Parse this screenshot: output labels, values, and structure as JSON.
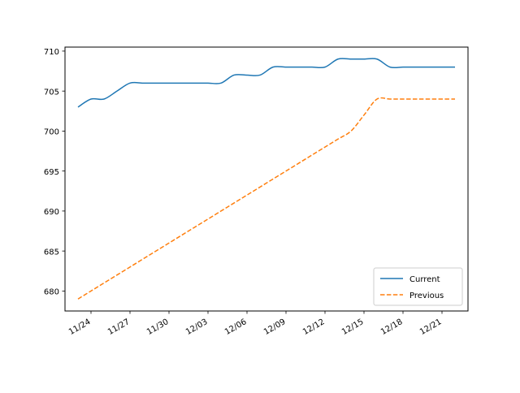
{
  "chart_data": {
    "type": "line",
    "title": "",
    "xlabel": "",
    "ylabel": "",
    "x_tick_labels": [
      "11/24",
      "11/27",
      "11/30",
      "12/03",
      "12/06",
      "12/09",
      "12/12",
      "12/15",
      "12/18",
      "12/21"
    ],
    "x_tick_dates": [
      "11/24",
      "11/27",
      "11/30",
      "12/03",
      "12/06",
      "12/09",
      "12/12",
      "12/15",
      "12/18",
      "12/21"
    ],
    "x_range": [
      "11/22",
      "12/23"
    ],
    "y_tick_labels": [
      "680",
      "685",
      "690",
      "695",
      "700",
      "705",
      "710"
    ],
    "y_ticks": [
      680,
      685,
      690,
      695,
      700,
      705,
      710
    ],
    "ylim": [
      677.5,
      710.5
    ],
    "grid": false,
    "legend_position": "lower-right",
    "series": [
      {
        "name": "Current",
        "color": "#1f77b4",
        "style": "solid",
        "points": [
          [
            "11/23",
            703.0
          ],
          [
            "11/24",
            704.0
          ],
          [
            "11/25",
            704.0
          ],
          [
            "11/26",
            705.0
          ],
          [
            "11/27",
            706.0
          ],
          [
            "11/28",
            706.0
          ],
          [
            "11/29",
            706.0
          ],
          [
            "11/30",
            706.0
          ],
          [
            "12/01",
            706.0
          ],
          [
            "12/02",
            706.0
          ],
          [
            "12/03",
            706.0
          ],
          [
            "12/04",
            706.0
          ],
          [
            "12/05",
            707.0
          ],
          [
            "12/06",
            707.0
          ],
          [
            "12/07",
            707.0
          ],
          [
            "12/08",
            708.0
          ],
          [
            "12/09",
            708.0
          ],
          [
            "12/10",
            708.0
          ],
          [
            "12/11",
            708.0
          ],
          [
            "12/12",
            708.0
          ],
          [
            "12/13",
            709.0
          ],
          [
            "12/14",
            709.0
          ],
          [
            "12/15",
            709.0
          ],
          [
            "12/16",
            709.0
          ],
          [
            "12/17",
            708.0
          ],
          [
            "12/18",
            708.0
          ],
          [
            "12/19",
            708.0
          ],
          [
            "12/20",
            708.0
          ],
          [
            "12/21",
            708.0
          ],
          [
            "12/22",
            708.0
          ]
        ]
      },
      {
        "name": "Previous",
        "color": "#ff7f0e",
        "style": "dashed",
        "points": [
          [
            "11/23",
            679.0
          ],
          [
            "11/24",
            680.0
          ],
          [
            "11/25",
            681.0
          ],
          [
            "11/26",
            682.0
          ],
          [
            "11/27",
            683.0
          ],
          [
            "11/28",
            684.0
          ],
          [
            "11/29",
            685.0
          ],
          [
            "11/30",
            686.0
          ],
          [
            "12/01",
            687.0
          ],
          [
            "12/02",
            688.0
          ],
          [
            "12/03",
            689.0
          ],
          [
            "12/04",
            690.0
          ],
          [
            "12/05",
            691.0
          ],
          [
            "12/06",
            692.0
          ],
          [
            "12/07",
            693.0
          ],
          [
            "12/08",
            694.0
          ],
          [
            "12/09",
            695.0
          ],
          [
            "12/10",
            696.0
          ],
          [
            "12/11",
            697.0
          ],
          [
            "12/12",
            698.0
          ],
          [
            "12/13",
            699.0
          ],
          [
            "12/14",
            700.0
          ],
          [
            "12/15",
            702.0
          ],
          [
            "12/16",
            704.0
          ],
          [
            "12/17",
            704.0
          ],
          [
            "12/18",
            704.0
          ],
          [
            "12/19",
            704.0
          ],
          [
            "12/20",
            704.0
          ],
          [
            "12/21",
            704.0
          ],
          [
            "12/22",
            704.0
          ]
        ]
      }
    ]
  }
}
